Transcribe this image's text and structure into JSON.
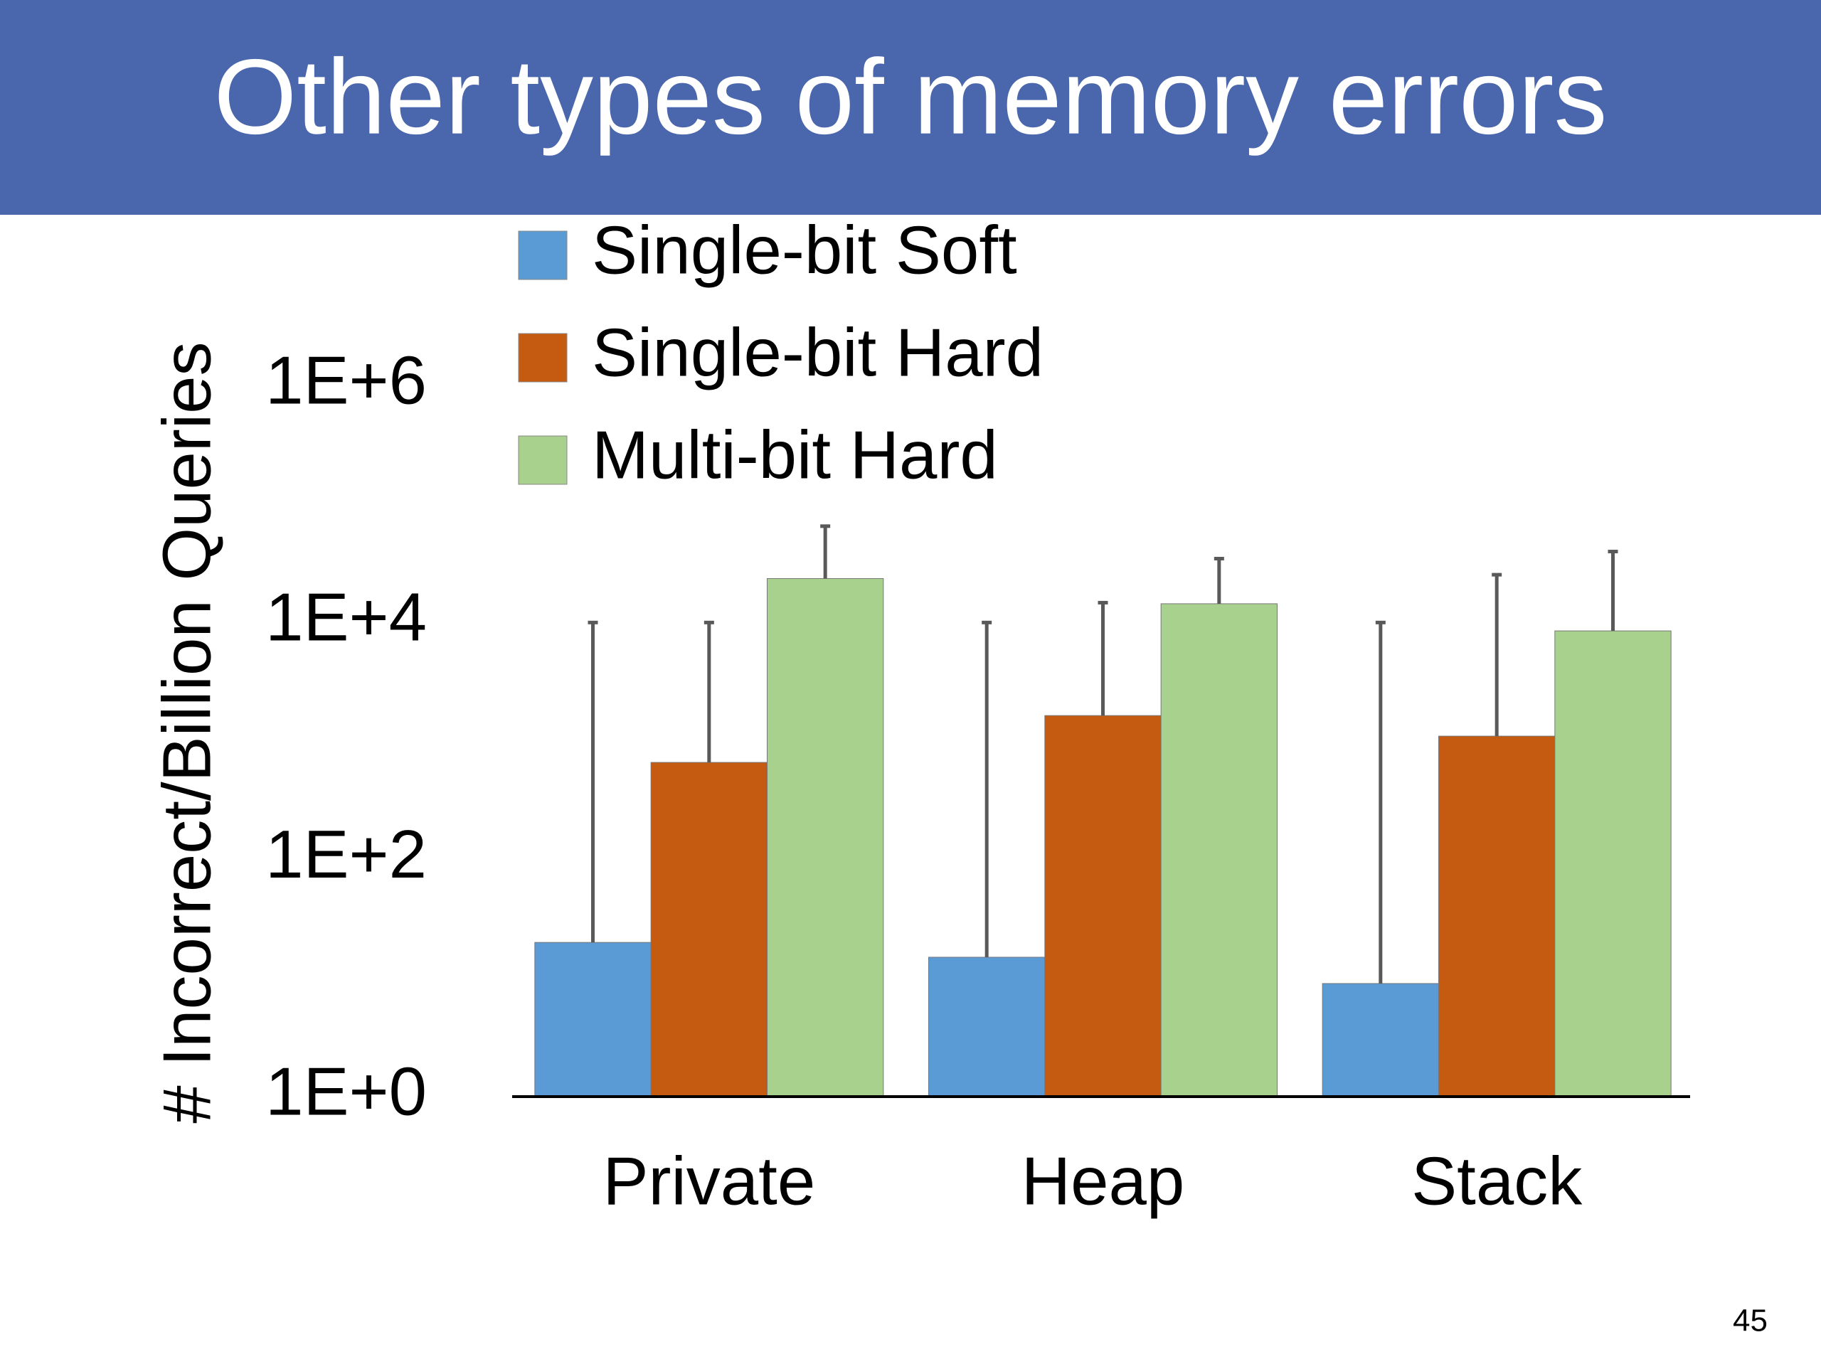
{
  "page_number": "45",
  "chart_data": {
    "type": "bar",
    "title": "Other types of memory errors",
    "y_label": "# Incorrect/Billion Queries",
    "categories": [
      "Private",
      "Heap",
      "Stack"
    ],
    "series": [
      {
        "name": "Single-bit Soft",
        "color": "#5b9bd5",
        "values": [
          20,
          15,
          9
        ],
        "errors": [
          9980,
          9985,
          9991
        ]
      },
      {
        "name": "Single-bit Hard",
        "color": "#c55a11",
        "values": [
          660,
          1640,
          1100
        ],
        "errors": [
          9340,
          13060,
          24200
        ]
      },
      {
        "name": "Multi-bit Hard",
        "color": "#a9d18e",
        "values": [
          23500,
          14400,
          8500
        ],
        "errors": [
          41500,
          20200,
          31200
        ]
      }
    ],
    "log_scale": true,
    "ylim": [
      1,
      1000000
    ],
    "yticks": [
      {
        "value": 1,
        "label": "1E+0"
      },
      {
        "value": 100,
        "label": "1E+2"
      },
      {
        "value": 10000,
        "label": "1E+4"
      },
      {
        "value": 1000000,
        "label": "1E+6"
      }
    ],
    "legend": "top-left"
  }
}
